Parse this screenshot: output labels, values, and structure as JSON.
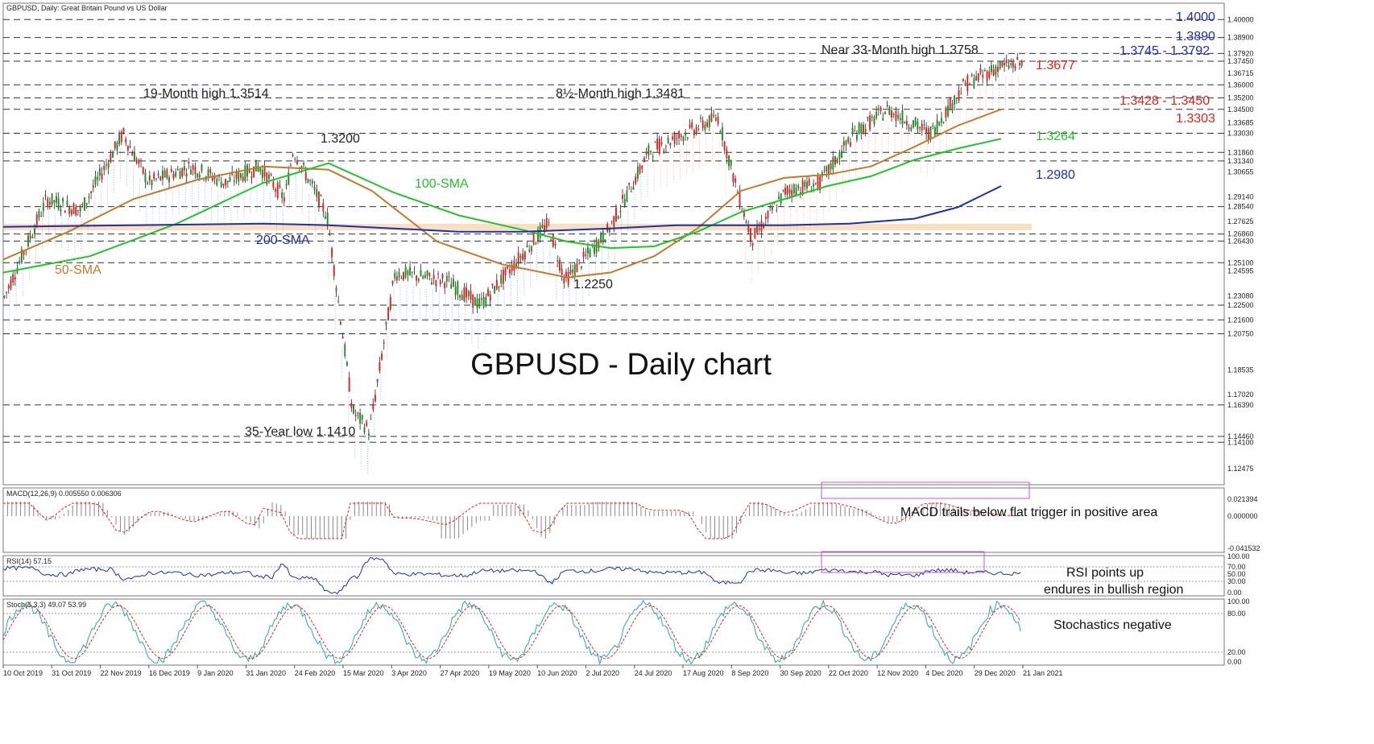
{
  "chart_data": {
    "type": "line",
    "header": "GBPUSD, Daily:  Great Britain Pound vs US Dollar",
    "title": "GBPUSD - Daily chart",
    "x_ticks": [
      "10 Oct 2019",
      "31 Oct 2019",
      "22 Nov 2019",
      "16 Dec 2019",
      "9 Jan 2020",
      "31 Jan 2020",
      "24 Feb 2020",
      "15 Mar 2020",
      "3 Apr 2020",
      "27 Apr 2020",
      "19 May 2020",
      "10 Jun 2020",
      "2 Jul 2020",
      "24 Jul 2020",
      "17 Aug 2020",
      "8 Sep 2020",
      "30 Sep 2020",
      "22 Oct 2020",
      "12 Nov 2020",
      "4 Dec 2020",
      "29 Dec 2020",
      "21 Jan 2021"
    ],
    "price_axis": {
      "ylim": [
        1.115,
        1.41
      ],
      "ticks": [
        "1.40000",
        "1.38900",
        "1.37920",
        "1.37450",
        "1.36715",
        "1.36000",
        "1.35200",
        "1.34500",
        "1.33685",
        "1.33030",
        "1.31860",
        "1.31340",
        "1.30655",
        "1.29140",
        "1.28540",
        "1.27625",
        "1.26860",
        "1.26430",
        "1.25100",
        "1.24595",
        "1.23080",
        "1.22500",
        "1.21600",
        "1.20750",
        "1.18535",
        "1.17020",
        "1.16390",
        "1.14460",
        "1.14100",
        "1.12475"
      ]
    },
    "horizontal_levels": [
      1.4,
      1.389,
      1.3792,
      1.3745,
      1.36,
      1.352,
      1.345,
      1.3303,
      1.3186,
      1.3134,
      1.2854,
      1.2686,
      1.2643,
      1.251,
      1.225,
      1.216,
      1.2075,
      1.1639,
      1.1446,
      1.141
    ],
    "series": [
      {
        "name": "50-SMA",
        "color": "#c07a2a",
        "values": [
          [
            0,
            1.253
          ],
          [
            30,
            1.27
          ],
          [
            60,
            1.29
          ],
          [
            90,
            1.302
          ],
          [
            120,
            1.31
          ],
          [
            150,
            1.308
          ],
          [
            170,
            1.295
          ],
          [
            200,
            1.264
          ],
          [
            230,
            1.25
          ],
          [
            260,
            1.242
          ],
          [
            280,
            1.245
          ],
          [
            300,
            1.255
          ],
          [
            320,
            1.272
          ],
          [
            340,
            1.295
          ],
          [
            360,
            1.303
          ],
          [
            380,
            1.305
          ],
          [
            400,
            1.31
          ],
          [
            420,
            1.322
          ],
          [
            440,
            1.335
          ],
          [
            460,
            1.345
          ]
        ]
      },
      {
        "name": "100-SMA",
        "color": "#22c22a",
        "values": [
          [
            0,
            1.245
          ],
          [
            40,
            1.255
          ],
          [
            80,
            1.275
          ],
          [
            120,
            1.3
          ],
          [
            150,
            1.312
          ],
          [
            180,
            1.294
          ],
          [
            210,
            1.28
          ],
          [
            240,
            1.271
          ],
          [
            260,
            1.264
          ],
          [
            280,
            1.26
          ],
          [
            300,
            1.261
          ],
          [
            320,
            1.27
          ],
          [
            340,
            1.282
          ],
          [
            360,
            1.29
          ],
          [
            380,
            1.298
          ],
          [
            400,
            1.304
          ],
          [
            420,
            1.314
          ],
          [
            440,
            1.321
          ],
          [
            460,
            1.327
          ]
        ]
      },
      {
        "name": "200-SMA",
        "color": "#1b2fb0",
        "values": [
          [
            0,
            1.273
          ],
          [
            60,
            1.274
          ],
          [
            120,
            1.275
          ],
          [
            150,
            1.274
          ],
          [
            180,
            1.272
          ],
          [
            210,
            1.27
          ],
          [
            240,
            1.27
          ],
          [
            280,
            1.272
          ],
          [
            310,
            1.274
          ],
          [
            330,
            1.274
          ],
          [
            360,
            1.274
          ],
          [
            390,
            1.275
          ],
          [
            420,
            1.278
          ],
          [
            440,
            1.285
          ],
          [
            460,
            1.298
          ]
        ]
      }
    ],
    "annotations": [
      {
        "text": "19-Month high 1.3514",
        "color": "#222222"
      },
      {
        "text": "1.3200",
        "color": "#222222"
      },
      {
        "text": "35-Year low 1.1410",
        "color": "#222222"
      },
      {
        "text": "1.2250",
        "color": "#222222"
      },
      {
        "text": "8½-Month high 1.3481",
        "color": "#222222"
      },
      {
        "text": "Near 33-Month high 1.3758",
        "color": "#222222"
      },
      {
        "text": "100-SMA",
        "color": "#22c22a"
      },
      {
        "text": "200-SMA",
        "color": "#1b2fb0"
      },
      {
        "text": "50-SMA",
        "color": "#c07a2a"
      }
    ],
    "right_labels": [
      {
        "text": "1.4000",
        "color": "#1b2fb0"
      },
      {
        "text": "1.3890",
        "color": "#1b2fb0"
      },
      {
        "text": "1.3745 - 1.3792",
        "color": "#1b2fb0"
      },
      {
        "text": "1.3677",
        "color": "#e0201a"
      },
      {
        "text": "1.3428 - 1.3450",
        "color": "#e0201a"
      },
      {
        "text": "1.3303",
        "color": "#e0201a"
      },
      {
        "text": "1.3264",
        "color": "#22c22a"
      },
      {
        "text": "1.2980",
        "color": "#1b2fb0"
      }
    ],
    "macd": {
      "header": "MACD(12,26,9) 0.005550 0.006306",
      "ticks": [
        "0.021394",
        "0.000000",
        "-0.041532"
      ],
      "note": "MACD trails below flat trigger in positive area"
    },
    "rsi": {
      "header": "RSI(14) 57.15",
      "ticks": [
        "100.00",
        "70.00",
        "50.00",
        "30.00",
        "0.00"
      ],
      "note_line1": "RSI points up",
      "note_line2": "endures in bullish region"
    },
    "stoch": {
      "header": "Stoch(5,3,3) 49.07 53.99",
      "ticks": [
        "100.00",
        "80.00",
        "20.00",
        "0.00"
      ],
      "note": "Stochastics negative"
    },
    "colors": {
      "bull": "#1f8a1f",
      "bear": "#e0201a",
      "blue_level": "#1b2fb0",
      "orange_zone": "#f5c58e",
      "cloud_blue": "#5aa0e0",
      "cloud_orange": "#e8a05a",
      "macd_box": "#cc55cc"
    }
  }
}
